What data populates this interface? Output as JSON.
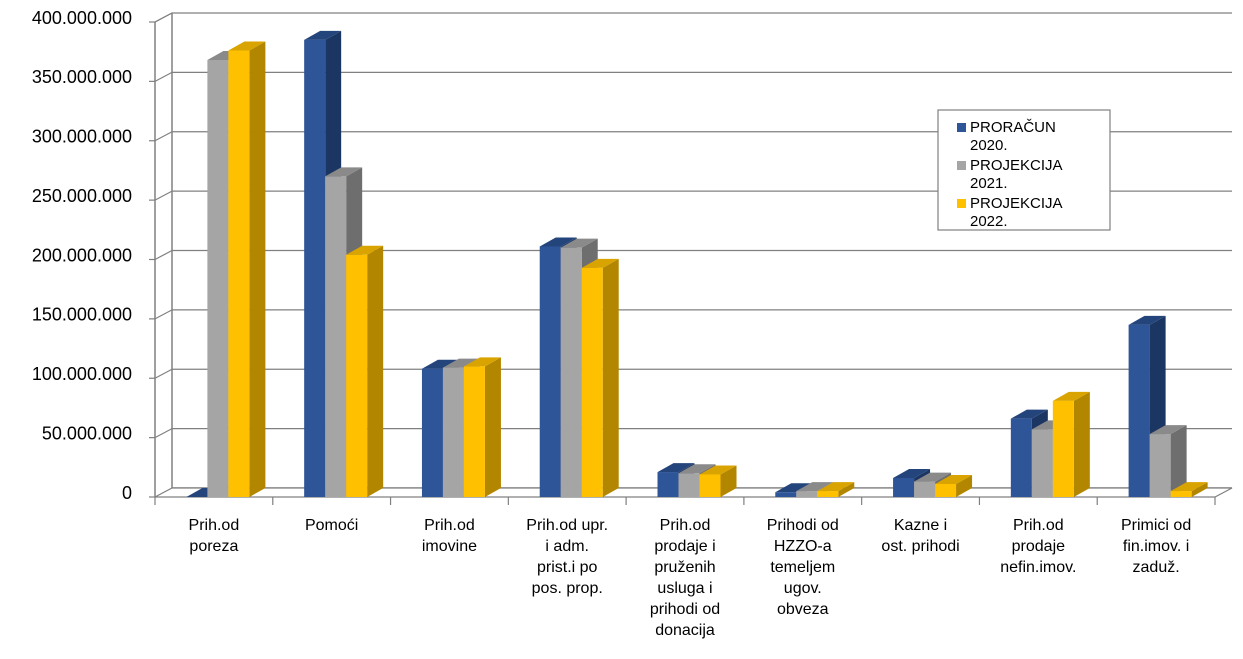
{
  "chart_data": {
    "type": "bar",
    "style": "3d-clustered-column",
    "categories": [
      "Prih.od\nporeza",
      "Pomoći",
      "Prih.od\nimovine",
      "Prih.od upr.\ni adm.\nprist.i po\npos. prop.",
      "Prih.od\nprodaje i\npruženih\nusluga i\nprihodi od\ndonacija",
      "Prihodi od\nHZZO-a\ntemeljem\nugov.\nobveza",
      "Kazne i\nost. prihodi",
      "Prih.od\nprodaje\nnefin.imov.",
      "Primici od\nfin.imov. i\nzaduž."
    ],
    "series": [
      {
        "name": "PRORAČUN\n2020.",
        "color": "#2E5597",
        "top_color": "#24457C",
        "side_color": "#1C3664",
        "values": [
          0,
          385000000,
          108000000,
          211000000,
          21000000,
          4000000,
          16000000,
          66000000,
          145000000
        ]
      },
      {
        "name": "PROJEKCIJA\n2021.",
        "color": "#A5A5A5",
        "top_color": "#8A8A8A",
        "side_color": "#6E6E6E",
        "values": [
          368000000,
          270000000,
          109000000,
          210000000,
          20000000,
          5000000,
          13000000,
          57000000,
          53000000
        ]
      },
      {
        "name": "PROJEKCIJA\n2022.",
        "color": "#FFC000",
        "top_color": "#D9A300",
        "side_color": "#B38600",
        "values": [
          376000000,
          204000000,
          110000000,
          193000000,
          19000000,
          5000000,
          11000000,
          81000000,
          5000000
        ]
      }
    ],
    "yticks": [
      "400.000.000",
      "350.000.000",
      "300.000.000",
      "250.000.000",
      "200.000.000",
      "150.000.000",
      "100.000.000",
      "50.000.000",
      "0"
    ],
    "ylim": [
      0,
      400000000
    ],
    "grid": true,
    "legend": "right"
  }
}
